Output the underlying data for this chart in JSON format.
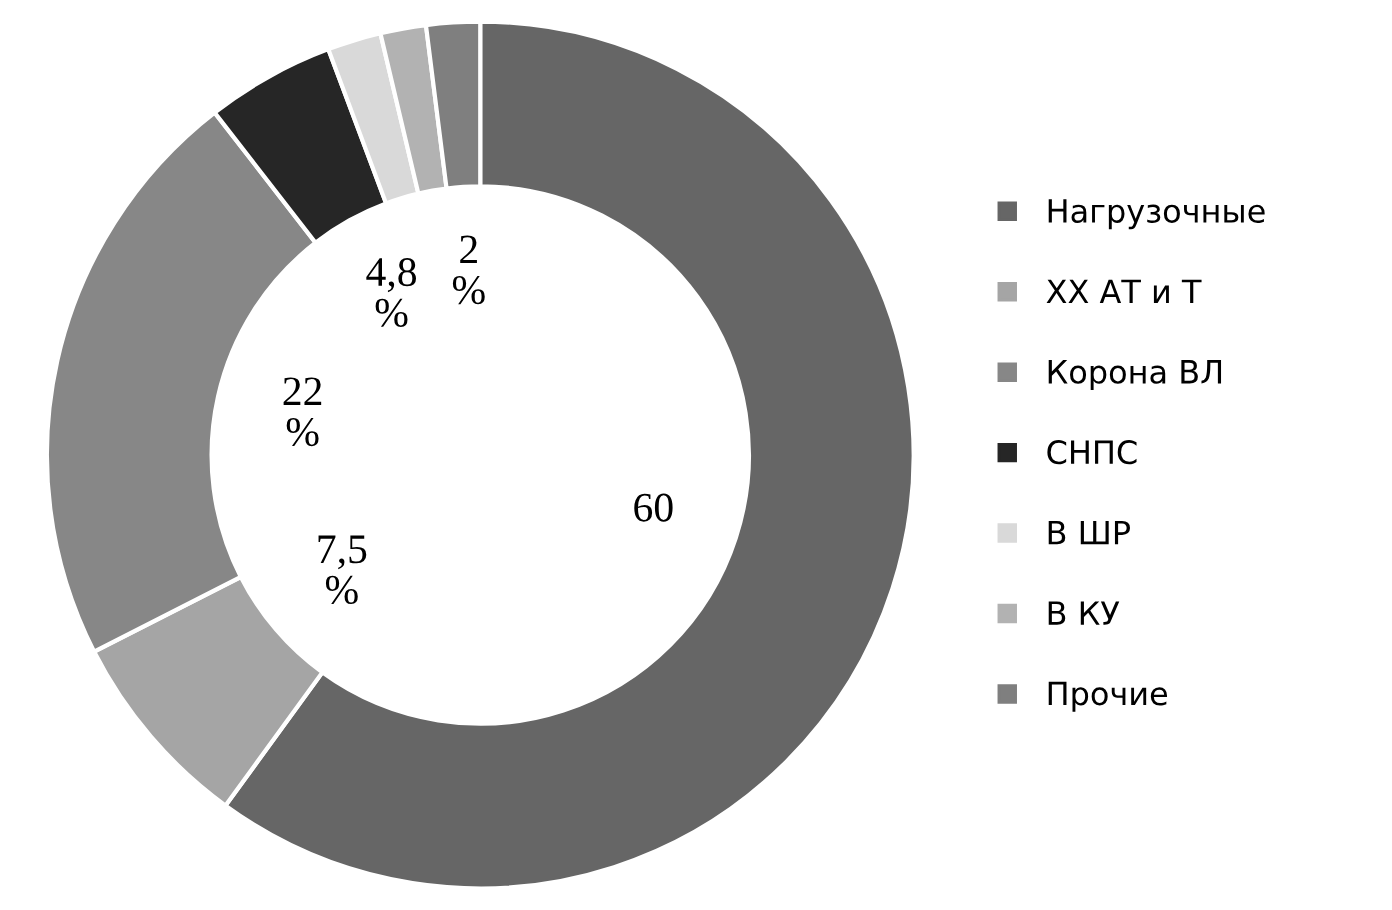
{
  "chart_data": {
    "type": "donut",
    "categories": [
      "Нагрузочные",
      "ХХ АТ и Т",
      "Корона ВЛ",
      "СНПС",
      "В ШР",
      "В КУ",
      "Прочие"
    ],
    "values": [
      60,
      7.5,
      22,
      4.8,
      2,
      1.7,
      2
    ],
    "colors": [
      "#666666",
      "#a5a5a5",
      "#878787",
      "#262626",
      "#d9d9d9",
      "#b2b2b2",
      "#7f7f7f"
    ],
    "value_labels": [
      "60",
      "7,5 %",
      "22 %",
      "4,8 %",
      null,
      null,
      "2 %"
    ],
    "legend": "right"
  }
}
